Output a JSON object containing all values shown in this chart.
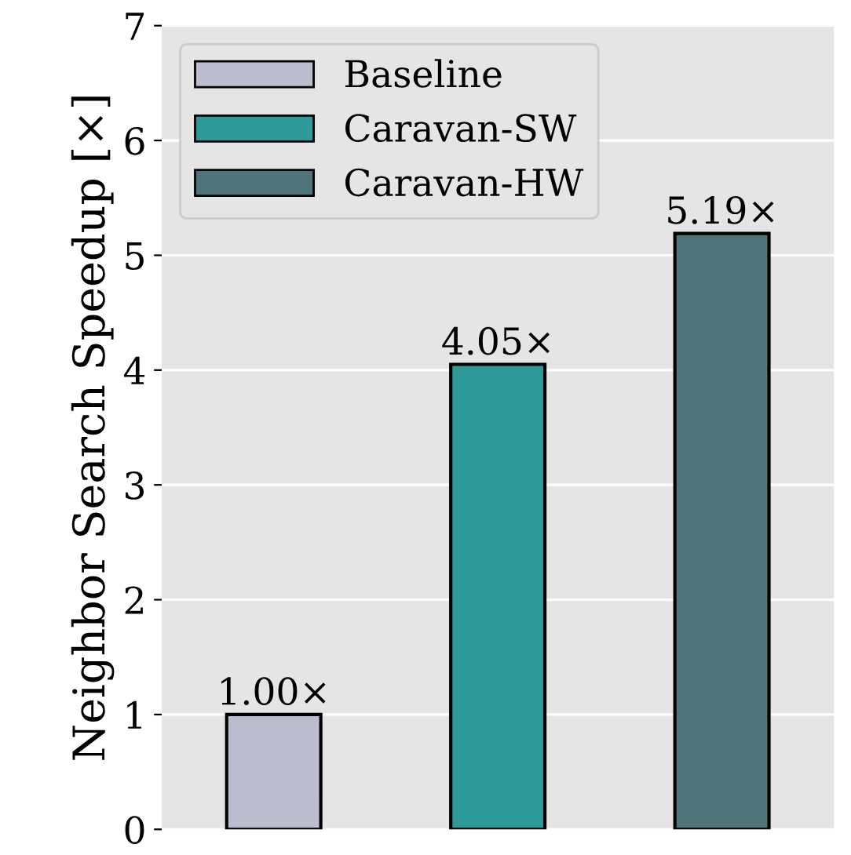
{
  "chart_data": {
    "type": "bar",
    "ylabel": "Neighbor Search Speedup [×]",
    "categories": [
      null,
      null,
      null
    ],
    "series": [
      {
        "name": "Baseline",
        "color": "#bcbccf",
        "values": [
          1.0,
          null,
          null
        ],
        "value_labels": [
          "1.00×",
          null,
          null
        ]
      },
      {
        "name": "Caravan-SW",
        "color": "#2e9999",
        "values": [
          null,
          4.05,
          null
        ],
        "value_labels": [
          null,
          "4.05×",
          null
        ]
      },
      {
        "name": "Caravan-HW",
        "color": "#4f7479",
        "values": [
          null,
          null,
          5.19
        ],
        "value_labels": [
          null,
          null,
          "5.19×"
        ]
      }
    ],
    "ylim": [
      0,
      7
    ],
    "yticks": [
      0,
      1,
      2,
      3,
      4,
      5,
      6,
      7
    ],
    "grid": "y",
    "legend": "top left"
  }
}
